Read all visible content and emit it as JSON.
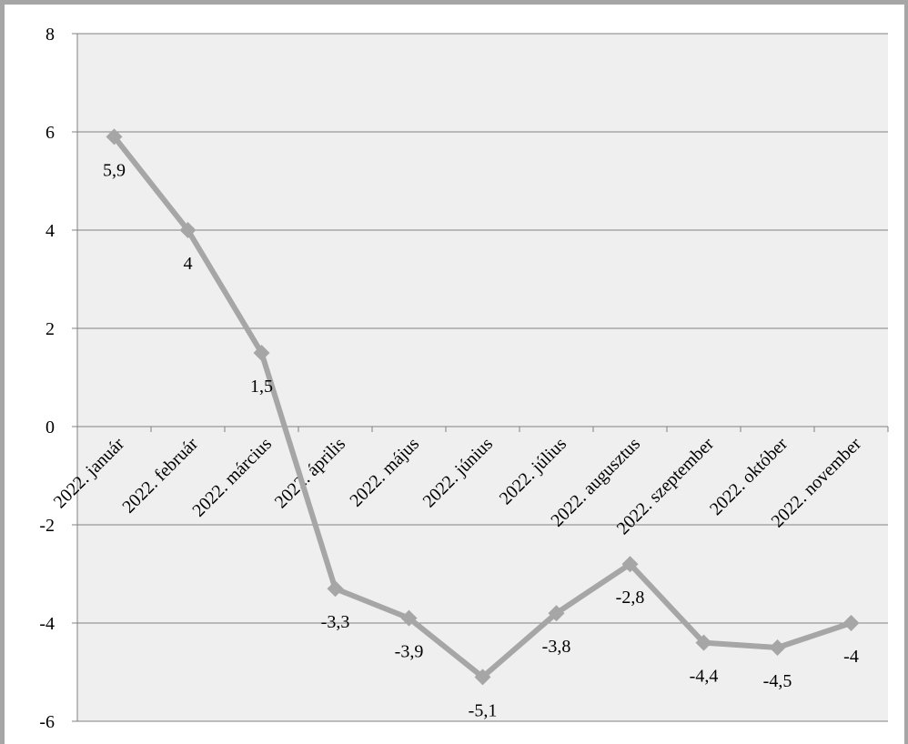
{
  "chart_data": {
    "type": "line",
    "title": "",
    "xlabel": "",
    "ylabel": "",
    "ylim": [
      -6,
      8
    ],
    "yticks": [
      "8",
      "6",
      "4",
      "2",
      "0",
      "-2",
      "-4",
      "-6"
    ],
    "categories": [
      "2022. január",
      "2022. február",
      "2022. március",
      "2022. április",
      "2022. május",
      "2022. június",
      "2022. július",
      "2022. augusztus",
      "2022. szeptember",
      "2022. október",
      "2022. november"
    ],
    "values": [
      5.9,
      4,
      1.5,
      -3.3,
      -3.9,
      -5.1,
      -3.8,
      -2.8,
      -4.4,
      -4.5,
      -4
    ],
    "value_labels": [
      "5,9",
      "4",
      "1,5",
      "-3,3",
      "-3,9",
      "-5,1",
      "-3,8",
      "-2,8",
      "-4,4",
      "-4,5",
      "-4"
    ],
    "grid": true,
    "legend": "none",
    "colors": {
      "line": "#a6a6a6",
      "plot_background": "#efefef",
      "gridline": "#808080",
      "frame": "#a6a6a6"
    }
  }
}
